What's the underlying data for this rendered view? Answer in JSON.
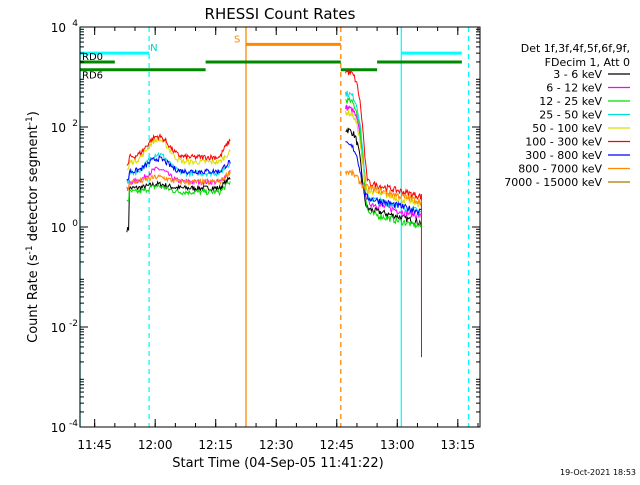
{
  "chart_data": {
    "type": "line",
    "title": "RHESSI Count Rates",
    "xlabel": "Start Time (04-Sep-05 11:41:22)",
    "ylabel_prefix": "Count Rate (s",
    "ylabel_sup": "-1",
    "ylabel_mid": " detector segment",
    "ylabel_suffix": ")",
    "y_scale": "log",
    "ylim": [
      0.0001,
      10000
    ],
    "xlim": [
      "11:41:22",
      "13:20:30"
    ],
    "x_ticks": [
      "11:45",
      "12:00",
      "12:15",
      "12:30",
      "12:45",
      "13:00",
      "13:15"
    ],
    "y_ticks": [
      {
        "base": "10",
        "exp": "-4",
        "value": 0.0001
      },
      {
        "base": "10",
        "exp": "-2",
        "value": 0.01
      },
      {
        "base": "10",
        "exp": "0",
        "value": 1
      },
      {
        "base": "10",
        "exp": "2",
        "value": 100
      },
      {
        "base": "10",
        "exp": "4",
        "value": 10000
      }
    ],
    "legend_header": [
      "Det 1f,3f,4f,5f,6f,9f,",
      "FDecim 1, Att 0"
    ],
    "series": [
      {
        "name": "3 - 6 keV",
        "color": "#000000",
        "level": 6,
        "peak": 1.2,
        "flare": 90,
        "tail": 3,
        "lo_end": true
      },
      {
        "name": "6 - 12 keV",
        "color": "#ff00ff",
        "level": 8,
        "peak": 1.8,
        "flare": 250,
        "tail": 4
      },
      {
        "name": "12 - 25 keV",
        "color": "#00dd00",
        "level": 5,
        "peak": 1.3,
        "flare": 350,
        "tail": 2.5
      },
      {
        "name": "25 - 50 keV",
        "color": "#00dddd",
        "level": 12,
        "peak": 2.4,
        "flare": 480,
        "tail": 5
      },
      {
        "name": "50 - 100 keV",
        "color": "#dddd00",
        "level": 20,
        "peak": 2.8,
        "flare": 200,
        "tail": 7
      },
      {
        "name": "100 - 300 keV",
        "color": "#ff0000",
        "level": 25,
        "peak": 2.6,
        "flare": 1300,
        "tail": 10,
        "drop_end": true
      },
      {
        "name": "300 - 800 keV",
        "color": "#0000ff",
        "level": 13,
        "peak": 1.8,
        "flare": 45,
        "tail": 5
      },
      {
        "name": "800 - 7000 keV",
        "color": "#ff8800",
        "level": 8,
        "peak": 1.25,
        "flare": 13,
        "tail": 8
      },
      {
        "name": "7000 - 15000 keV",
        "color": "#aa7700",
        "level": 0,
        "peak": 0,
        "flare": 0,
        "tail": 0
      }
    ],
    "segments": [
      {
        "label": "",
        "color": "#00ffff",
        "y": 3000,
        "ranges": [
          [
            "11:41:22",
            "11:58:30"
          ],
          [
            "13:01:00",
            "13:16:00"
          ]
        ]
      },
      {
        "label": "RD0",
        "color": "#008800",
        "y": 2000,
        "ranges": [
          [
            "11:41:22",
            "11:50:00"
          ],
          [
            "12:12:30",
            "12:46:00"
          ],
          [
            "12:55:00",
            "13:16:00"
          ]
        ]
      },
      {
        "label": "RD6",
        "color": "#008800",
        "y": 1400,
        "ranges": [
          [
            "11:41:22",
            "12:12:30"
          ],
          [
            "12:46:00",
            "12:55:00"
          ]
        ]
      },
      {
        "label": "S",
        "color": "#ff8800",
        "y": 4500,
        "ranges": [
          [
            "12:22:30",
            "12:46:00"
          ]
        ]
      }
    ],
    "night_label": "N",
    "vlines": [
      {
        "time": "11:41:22",
        "color": "#00ffff",
        "style": "solid"
      },
      {
        "time": "11:58:30",
        "color": "#00ffff",
        "style": "dashed"
      },
      {
        "time": "12:22:30",
        "color": "#ff8800",
        "style": "solid"
      },
      {
        "time": "12:46:00",
        "color": "#ff8800",
        "style": "dashed"
      },
      {
        "time": "13:01:00",
        "color": "#00ffff",
        "style": "solid"
      },
      {
        "time": "13:17:40",
        "color": "#00ffff",
        "style": "dashed"
      }
    ],
    "timestamp": "19-Oct-2021 18:53"
  }
}
